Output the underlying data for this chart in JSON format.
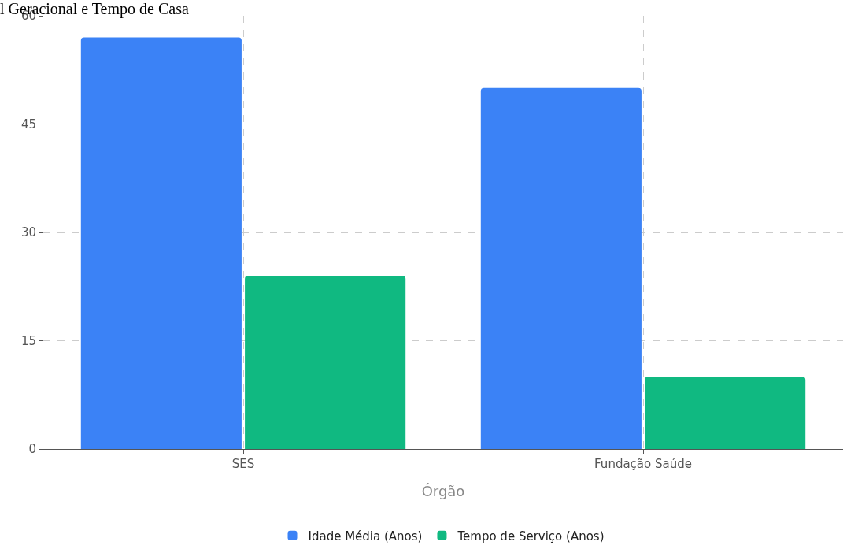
{
  "chart_data": {
    "type": "bar",
    "title": "l Geracional e Tempo de Casa",
    "xlabel": "Órgão",
    "categories": [
      "SES",
      "Fundação Saúde"
    ],
    "series": [
      {
        "name": "Idade Média (Anos)",
        "color": "#3b82f6",
        "values": [
          57,
          50
        ]
      },
      {
        "name": "Tempo de Serviço (Anos)",
        "color": "#10b981",
        "values": [
          24,
          10
        ]
      }
    ],
    "ylim": [
      0,
      60
    ],
    "yticks": [
      0,
      15,
      30,
      45,
      60
    ],
    "grid": true,
    "legend": "bottom"
  }
}
